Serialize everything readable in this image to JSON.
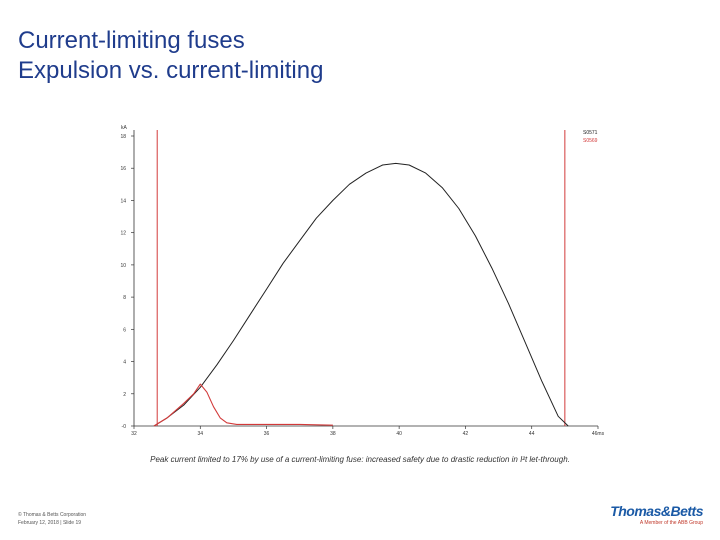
{
  "header": {
    "title_line1": "Current-limiting fuses",
    "title_line2": "Expulsion vs. current-limiting"
  },
  "caption": "Peak current limited to 17% by use of a current-limiting fuse: increased safety due to drastic reduction in I²t let-through.",
  "footer": {
    "line1": "© Thomas & Betts Corporation",
    "line2": "February 12, 2018",
    "line3": "| Slide 19"
  },
  "logo": {
    "name": "Thomas&Betts",
    "tagline": "A Member of the ABB Group"
  },
  "colors": {
    "title": "#1f3c8c",
    "axis": "#333333",
    "series_black": "#222222",
    "series_red": "#d23a3a"
  },
  "chart_data": {
    "type": "line",
    "title": "",
    "xlabel": "ms",
    "ylabel": "kA",
    "xlim": [
      32,
      46
    ],
    "ylim": [
      0,
      18
    ],
    "x_ticks": [
      "32",
      "34",
      "36",
      "38",
      "40",
      "42",
      "44",
      "46"
    ],
    "x_tick_values": [
      32,
      34,
      36,
      38,
      40,
      42,
      44,
      46
    ],
    "x_last_tick_unit": "ms",
    "y_ticks": [
      "-0",
      "2",
      "4",
      "6",
      "8",
      "10",
      "12",
      "14",
      "16",
      "18"
    ],
    "y_tick_values": [
      0,
      2,
      4,
      6,
      8,
      10,
      12,
      14,
      16,
      18
    ],
    "grid": false,
    "legend_position": "top-right",
    "series": [
      {
        "name": "S0571",
        "color": "#222222",
        "x": [
          32.6,
          33.0,
          33.5,
          34.0,
          34.5,
          35.0,
          35.5,
          36.0,
          36.5,
          37.0,
          37.5,
          38.0,
          38.5,
          39.0,
          39.5,
          39.9,
          40.3,
          40.8,
          41.3,
          41.8,
          42.3,
          42.8,
          43.3,
          43.8,
          44.3,
          44.8,
          45.1
        ],
        "y": [
          0.0,
          0.5,
          1.3,
          2.4,
          3.8,
          5.3,
          6.9,
          8.5,
          10.1,
          11.5,
          12.9,
          14.0,
          15.0,
          15.7,
          16.2,
          16.3,
          16.2,
          15.7,
          14.8,
          13.5,
          11.8,
          9.8,
          7.6,
          5.2,
          2.8,
          0.6,
          0.0
        ]
      },
      {
        "name": "S0569",
        "color": "#d23a3a",
        "x": [
          32.6,
          33.0,
          33.5,
          33.8,
          34.0,
          34.2,
          34.4,
          34.6,
          34.8,
          35.1,
          35.5,
          36.0,
          37.0,
          38.0
        ],
        "y": [
          0.0,
          0.5,
          1.4,
          2.0,
          2.6,
          2.1,
          1.2,
          0.5,
          0.2,
          0.1,
          0.1,
          0.1,
          0.1,
          0.05
        ]
      }
    ],
    "vertical_markers": [
      {
        "x": 32.7,
        "color": "#d23a3a"
      },
      {
        "x": 45.0,
        "color": "#d23a3a"
      }
    ]
  }
}
